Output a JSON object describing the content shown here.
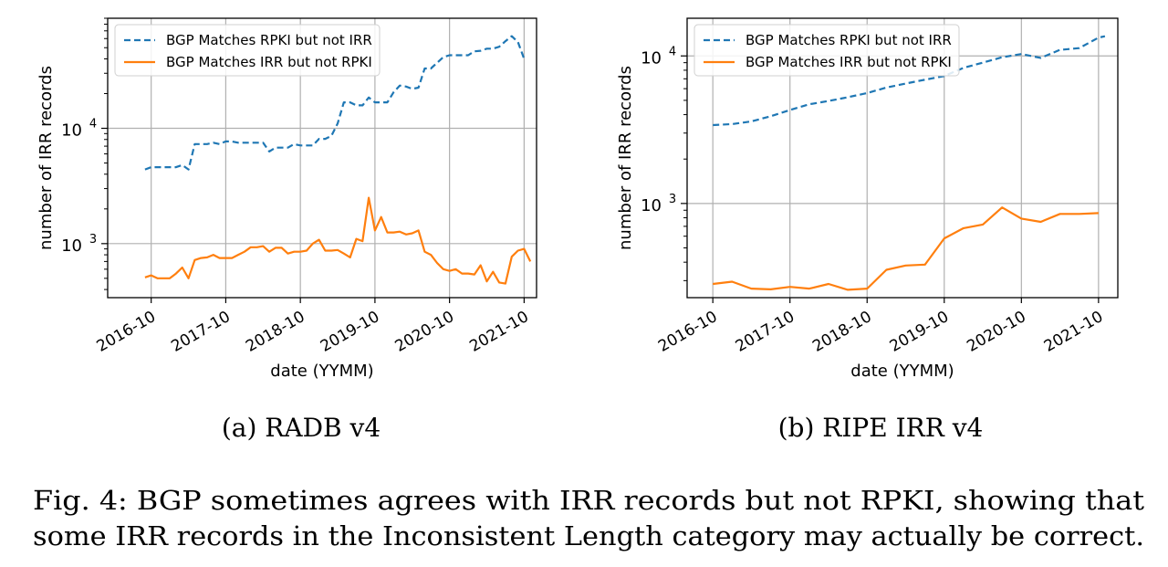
{
  "figure": {
    "caption_line1": "Fig. 4: BGP sometimes agrees with IRR records but not RPKI, showing that",
    "caption_line2": "some IRR records in the Inconsistent Length category may actually be correct.",
    "colors": {
      "series1": "#1f77b4",
      "series2": "#ff7f0e",
      "grid": "#b0b0b0"
    }
  },
  "chart_data": [
    {
      "type": "line",
      "subcaption": "(a) RADB v4",
      "xlabel": "date (YYMM)",
      "ylabel": "number of IRR records",
      "yscale": "log",
      "ylim": [
        340,
        90000
      ],
      "xlim": [
        "2016-03",
        "2021-12"
      ],
      "xticks": [
        "2016-10",
        "2017-10",
        "2018-10",
        "2019-10",
        "2020-10",
        "2021-10"
      ],
      "yticks": [
        {
          "value": 1000,
          "base": "10",
          "exp": "3"
        },
        {
          "value": 10000,
          "base": "10",
          "exp": "4"
        }
      ],
      "grid": true,
      "legend_position": "top-left",
      "series": [
        {
          "name": "BGP Matches RPKI but not IRR",
          "style": "dashed",
          "color": "#1f77b4",
          "points": [
            [
              "2016-09",
              4400
            ],
            [
              "2016-10",
              4600
            ],
            [
              "2016-11",
              4600
            ],
            [
              "2016-12",
              4600
            ],
            [
              "2017-01",
              4600
            ],
            [
              "2017-02",
              4600
            ],
            [
              "2017-03",
              4800
            ],
            [
              "2017-04",
              4400
            ],
            [
              "2017-05",
              7300
            ],
            [
              "2017-06",
              7300
            ],
            [
              "2017-07",
              7300
            ],
            [
              "2017-08",
              7500
            ],
            [
              "2017-09",
              7300
            ],
            [
              "2017-10",
              7700
            ],
            [
              "2017-11",
              7700
            ],
            [
              "2017-12",
              7500
            ],
            [
              "2018-01",
              7500
            ],
            [
              "2018-02",
              7500
            ],
            [
              "2018-03",
              7500
            ],
            [
              "2018-04",
              7500
            ],
            [
              "2018-05",
              6300
            ],
            [
              "2018-06",
              6800
            ],
            [
              "2018-07",
              6800
            ],
            [
              "2018-08",
              6800
            ],
            [
              "2018-09",
              7300
            ],
            [
              "2018-10",
              7100
            ],
            [
              "2018-11",
              7100
            ],
            [
              "2018-12",
              7100
            ],
            [
              "2019-01",
              8100
            ],
            [
              "2019-02",
              8100
            ],
            [
              "2019-03",
              8600
            ],
            [
              "2019-04",
              11000
            ],
            [
              "2019-05",
              16800
            ],
            [
              "2019-06",
              16800
            ],
            [
              "2019-07",
              15800
            ],
            [
              "2019-08",
              15800
            ],
            [
              "2019-09",
              18500
            ],
            [
              "2019-10",
              16800
            ],
            [
              "2019-11",
              16800
            ],
            [
              "2019-12",
              16800
            ],
            [
              "2020-01",
              20500
            ],
            [
              "2020-02",
              23500
            ],
            [
              "2020-03",
              23000
            ],
            [
              "2020-04",
              22000
            ],
            [
              "2020-05",
              22500
            ],
            [
              "2020-06",
              33000
            ],
            [
              "2020-07",
              33000
            ],
            [
              "2020-08",
              37000
            ],
            [
              "2020-09",
              41500
            ],
            [
              "2020-10",
              43000
            ],
            [
              "2020-11",
              43000
            ],
            [
              "2020-12",
              43000
            ],
            [
              "2021-01",
              43000
            ],
            [
              "2021-02",
              46500
            ],
            [
              "2021-03",
              47000
            ],
            [
              "2021-04",
              49000
            ],
            [
              "2021-05",
              49000
            ],
            [
              "2021-06",
              51000
            ],
            [
              "2021-07",
              57000
            ],
            [
              "2021-08",
              63000
            ],
            [
              "2021-09",
              56000
            ],
            [
              "2021-10",
              40000
            ]
          ]
        },
        {
          "name": "BGP Matches IRR but not RPKI",
          "style": "solid",
          "color": "#ff7f0e",
          "points": [
            [
              "2016-09",
              510
            ],
            [
              "2016-10",
              530
            ],
            [
              "2016-11",
              500
            ],
            [
              "2016-12",
              500
            ],
            [
              "2017-01",
              500
            ],
            [
              "2017-02",
              550
            ],
            [
              "2017-03",
              620
            ],
            [
              "2017-04",
              500
            ],
            [
              "2017-05",
              720
            ],
            [
              "2017-06",
              750
            ],
            [
              "2017-07",
              760
            ],
            [
              "2017-08",
              800
            ],
            [
              "2017-09",
              750
            ],
            [
              "2017-10",
              750
            ],
            [
              "2017-11",
              750
            ],
            [
              "2017-12",
              800
            ],
            [
              "2018-01",
              850
            ],
            [
              "2018-02",
              930
            ],
            [
              "2018-03",
              930
            ],
            [
              "2018-04",
              950
            ],
            [
              "2018-05",
              850
            ],
            [
              "2018-06",
              920
            ],
            [
              "2018-07",
              920
            ],
            [
              "2018-08",
              820
            ],
            [
              "2018-09",
              850
            ],
            [
              "2018-10",
              850
            ],
            [
              "2018-11",
              870
            ],
            [
              "2018-12",
              1000
            ],
            [
              "2019-01",
              1080
            ],
            [
              "2019-02",
              870
            ],
            [
              "2019-03",
              870
            ],
            [
              "2019-04",
              880
            ],
            [
              "2019-05",
              820
            ],
            [
              "2019-06",
              760
            ],
            [
              "2019-07",
              1100
            ],
            [
              "2019-08",
              1050
            ],
            [
              "2019-09",
              2500
            ],
            [
              "2019-10",
              1300
            ],
            [
              "2019-11",
              1700
            ],
            [
              "2019-12",
              1250
            ],
            [
              "2020-01",
              1250
            ],
            [
              "2020-02",
              1270
            ],
            [
              "2020-03",
              1200
            ],
            [
              "2020-04",
              1230
            ],
            [
              "2020-05",
              1300
            ],
            [
              "2020-06",
              850
            ],
            [
              "2020-07",
              800
            ],
            [
              "2020-08",
              680
            ],
            [
              "2020-09",
              600
            ],
            [
              "2020-10",
              580
            ],
            [
              "2020-11",
              600
            ],
            [
              "2020-12",
              550
            ],
            [
              "2021-01",
              550
            ],
            [
              "2021-02",
              540
            ],
            [
              "2021-03",
              650
            ],
            [
              "2021-04",
              470
            ],
            [
              "2021-05",
              570
            ],
            [
              "2021-06",
              460
            ],
            [
              "2021-07",
              450
            ],
            [
              "2021-08",
              770
            ],
            [
              "2021-09",
              870
            ],
            [
              "2021-10",
              900
            ],
            [
              "2021-11",
              700
            ]
          ]
        }
      ]
    },
    {
      "type": "line",
      "subcaption": "(b) RIPE IRR v4",
      "xlabel": "date (YYMM)",
      "ylabel": "number of IRR records",
      "yscale": "log",
      "ylim": [
        230,
        18000
      ],
      "xlim": [
        "2016-06",
        "2022-01"
      ],
      "xticks": [
        "2016-10",
        "2017-10",
        "2018-10",
        "2019-10",
        "2020-10",
        "2021-10"
      ],
      "yticks": [
        {
          "value": 1000,
          "base": "10",
          "exp": "3"
        },
        {
          "value": 10000,
          "base": "10",
          "exp": "4"
        }
      ],
      "grid": true,
      "legend_position": "top-left",
      "series": [
        {
          "name": "BGP Matches RPKI but not IRR",
          "style": "dashed",
          "color": "#1f77b4",
          "points": [
            [
              "2016-10",
              3400
            ],
            [
              "2017-01",
              3450
            ],
            [
              "2017-04",
              3600
            ],
            [
              "2017-07",
              3900
            ],
            [
              "2017-10",
              4300
            ],
            [
              "2018-01",
              4700
            ],
            [
              "2018-04",
              4950
            ],
            [
              "2018-07",
              5250
            ],
            [
              "2018-10",
              5600
            ],
            [
              "2019-01",
              6100
            ],
            [
              "2019-04",
              6500
            ],
            [
              "2019-07",
              6900
            ],
            [
              "2019-10",
              7300
            ],
            [
              "2020-01",
              8300
            ],
            [
              "2020-04",
              9000
            ],
            [
              "2020-07",
              9800
            ],
            [
              "2020-10",
              10300
            ],
            [
              "2021-01",
              9700
            ],
            [
              "2021-04",
              11000
            ],
            [
              "2021-07",
              11300
            ],
            [
              "2021-10",
              13300
            ],
            [
              "2021-11",
              13600
            ]
          ]
        },
        {
          "name": "BGP Matches IRR but not RPKI",
          "style": "solid",
          "color": "#ff7f0e",
          "points": [
            [
              "2016-10",
              285
            ],
            [
              "2017-01",
              295
            ],
            [
              "2017-04",
              265
            ],
            [
              "2017-07",
              262
            ],
            [
              "2017-10",
              272
            ],
            [
              "2018-01",
              265
            ],
            [
              "2018-04",
              285
            ],
            [
              "2018-07",
              260
            ],
            [
              "2018-10",
              265
            ],
            [
              "2019-01",
              355
            ],
            [
              "2019-04",
              380
            ],
            [
              "2019-07",
              385
            ],
            [
              "2019-10",
              580
            ],
            [
              "2020-01",
              680
            ],
            [
              "2020-04",
              720
            ],
            [
              "2020-07",
              940
            ],
            [
              "2020-10",
              790
            ],
            [
              "2021-01",
              750
            ],
            [
              "2021-04",
              850
            ],
            [
              "2021-07",
              850
            ],
            [
              "2021-10",
              860
            ]
          ]
        }
      ]
    }
  ]
}
